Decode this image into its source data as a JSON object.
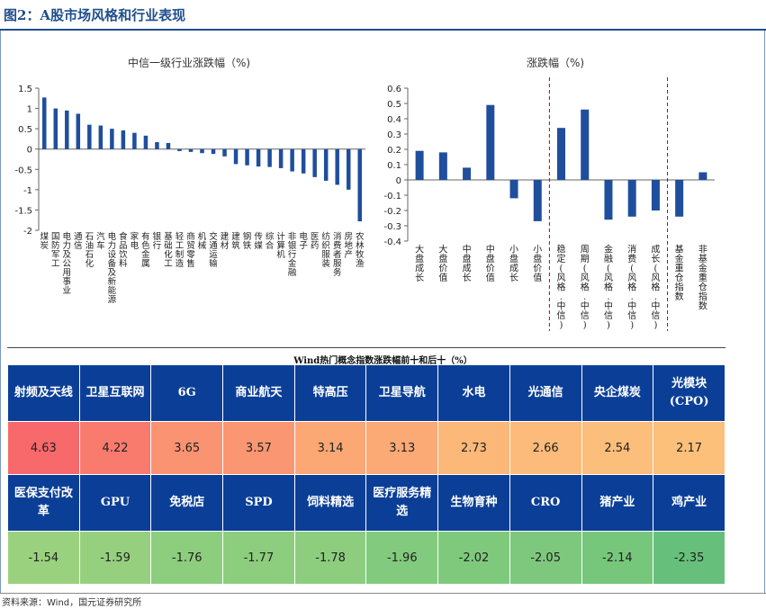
{
  "figure_title": "图2：A股市场风格和行业表现",
  "source": "资料来源：Wind，国元证券研究所",
  "colors": {
    "bar": "#1f4e9c",
    "header_blue": "#0b3f97",
    "divider_red": "#c00000",
    "top_high": "#f8696b",
    "top_low": "#fcbf7b",
    "bottom_green_light": "#9bd07e",
    "bottom_green_dark": "#63be7b"
  },
  "chart_data": [
    {
      "type": "bar",
      "title": "中信一级行业涨跌幅（%)",
      "categories": [
        "煤炭",
        "国防军工",
        "电力及公用事业",
        "通信",
        "石油石化",
        "汽车",
        "电力设备及新能源",
        "食品饮料",
        "家电",
        "有色金属",
        "银行",
        "基础化工",
        "轻工制造",
        "商贸零售",
        "机械",
        "交通运输",
        "建材",
        "建筑",
        "钢铁",
        "传媒",
        "综合",
        "计算机",
        "非银行金融",
        "电子",
        "医药",
        "纺织服装",
        "消费者服务",
        "房地产",
        "农林牧渔"
      ],
      "tick_labels_shown": [
        "煤炭",
        "国防军工",
        "电力及公用事业",
        "通信",
        "石油石化",
        "汽车",
        "电力设备及新能源",
        "食品饮料",
        "家电",
        "有色金属",
        "银行",
        "基础化工",
        "轻工制造",
        "商贸零售",
        "机械",
        "交通运输",
        "建材",
        "建筑",
        "钢铁",
        "传媒",
        "综合",
        "计算机",
        "非银行金融",
        "电子",
        "医药",
        "纺织服装",
        "消费者服务",
        "房地产",
        "农林牧渔"
      ],
      "values": [
        1.27,
        1.0,
        0.95,
        0.87,
        0.6,
        0.58,
        0.5,
        0.46,
        0.4,
        0.33,
        0.17,
        0.15,
        -0.05,
        -0.07,
        -0.1,
        -0.12,
        -0.18,
        -0.37,
        -0.4,
        -0.43,
        -0.44,
        -0.47,
        -0.55,
        -0.6,
        -0.69,
        -0.78,
        -0.88,
        -1.0,
        -1.78
      ],
      "ylim": [
        -2,
        1.5
      ],
      "yticks": [
        "1.5",
        "1",
        "0.5",
        "0",
        "-0.5",
        "-1",
        "-1.5",
        "-2"
      ],
      "ytick_values": [
        1.5,
        1,
        0.5,
        0,
        -0.5,
        -1,
        -1.5,
        -2
      ]
    },
    {
      "type": "bar",
      "title": "涨跌幅（%)",
      "categories": [
        "大盘成长",
        "大盘价值",
        "中盘成长",
        "中盘价值",
        "小盘成长",
        "小盘价值",
        "稳定(风格.中信)",
        "周期(风格.中信)",
        "金融(风格.中信)",
        "消费(风格.中信)",
        "成长(风格.中信)",
        "基金重仓指数",
        "非基金重仓指数"
      ],
      "values": [
        0.19,
        0.18,
        0.08,
        0.49,
        -0.12,
        -0.27,
        0.34,
        0.46,
        -0.26,
        -0.24,
        -0.2,
        -0.24,
        0.05
      ],
      "ylim": [
        -0.4,
        0.6
      ],
      "yticks": [
        "0.6",
        "0.5",
        "0.4",
        "0.3",
        "0.2",
        "0.1",
        "0",
        "-0.1",
        "-0.2",
        "-0.3",
        "-0.4"
      ],
      "ytick_values": [
        0.6,
        0.5,
        0.4,
        0.3,
        0.2,
        0.1,
        0,
        -0.1,
        -0.2,
        -0.3,
        -0.4
      ],
      "group_dividers_after_index": [
        5,
        10
      ]
    }
  ],
  "table": {
    "title": "Wind热门概念指数涨跌幅前十和后十（%）",
    "top": [
      {
        "name": "射频及天线",
        "value": "4.63",
        "color": "#f8696b"
      },
      {
        "name": "卫星互联网",
        "value": "4.22",
        "color": "#f97b6e"
      },
      {
        "name": "6G",
        "value": "3.65",
        "color": "#fa9371"
      },
      {
        "name": "商业航天",
        "value": "3.57",
        "color": "#fa9672"
      },
      {
        "name": "特高压",
        "value": "3.14",
        "color": "#fba875"
      },
      {
        "name": "卫星导航",
        "value": "3.13",
        "color": "#fba975"
      },
      {
        "name": "水电",
        "value": "2.73",
        "color": "#fcb879"
      },
      {
        "name": "光通信",
        "value": "2.66",
        "color": "#fcbb7a"
      },
      {
        "name": "央企煤炭",
        "value": "2.54",
        "color": "#fcbe7b"
      },
      {
        "name": "光模块(CPO)",
        "value": "2.17",
        "color": "#fcc07b"
      }
    ],
    "bottom": [
      {
        "name": "医保支付改革",
        "value": "-1.54",
        "color": "#9ad17f"
      },
      {
        "name": "GPU",
        "value": "-1.59",
        "color": "#96d07f"
      },
      {
        "name": "免税店",
        "value": "-1.76",
        "color": "#8dcd7e"
      },
      {
        "name": "SPD",
        "value": "-1.77",
        "color": "#8ccd7e"
      },
      {
        "name": "饲料精选",
        "value": "-1.78",
        "color": "#8ccd7e"
      },
      {
        "name": "医疗服务精选",
        "value": "-1.96",
        "color": "#82ca7d"
      },
      {
        "name": "生物育种",
        "value": "-2.02",
        "color": "#7fc97d"
      },
      {
        "name": "CRO",
        "value": "-2.05",
        "color": "#7dc87d"
      },
      {
        "name": "猪产业",
        "value": "-2.14",
        "color": "#76c67c"
      },
      {
        "name": "鸡产业",
        "value": "-2.35",
        "color": "#66bf7b"
      }
    ]
  }
}
